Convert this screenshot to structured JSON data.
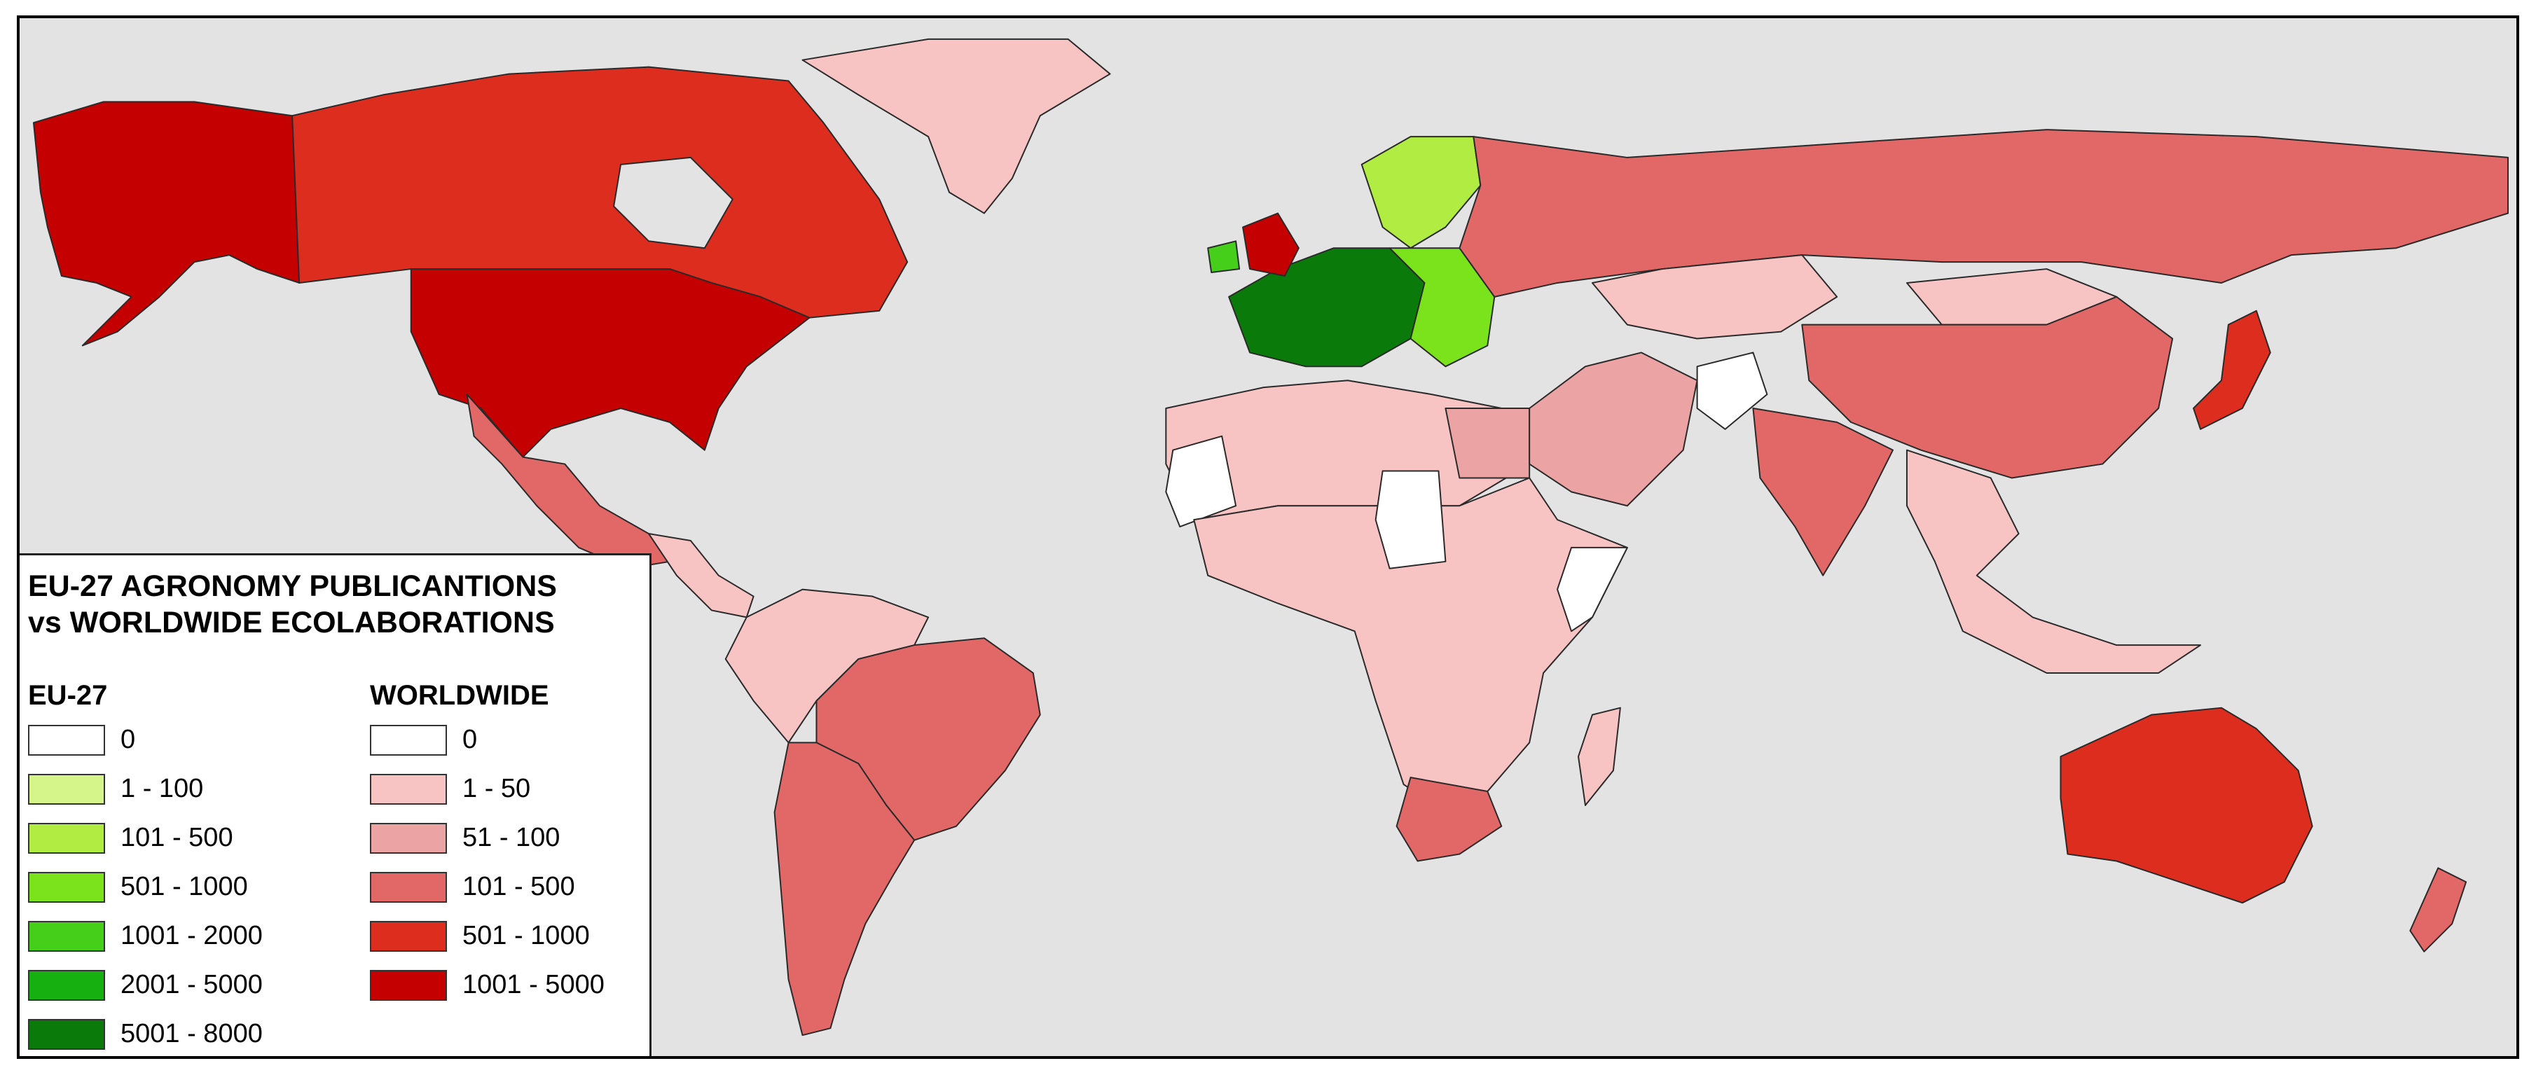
{
  "title_line1": "EU-27 AGRONOMY PUBLICANTIONS",
  "title_line2": "vs WORLDWIDE ECOLABORATIONS",
  "legend": {
    "eu27": {
      "heading": "EU-27",
      "classes": [
        {
          "label": "0",
          "color": "#ffffff"
        },
        {
          "label": "1 - 100",
          "color": "#d5f58a"
        },
        {
          "label": "101 - 500",
          "color": "#b0ec42"
        },
        {
          "label": "501 - 1000",
          "color": "#7be31c"
        },
        {
          "label": "1001 - 2000",
          "color": "#46cf1a"
        },
        {
          "label": "2001 - 5000",
          "color": "#16b010"
        },
        {
          "label": "5001 - 8000",
          "color": "#0a7a0a"
        }
      ]
    },
    "worldwide": {
      "heading": "WORLDWIDE",
      "classes": [
        {
          "label": "0",
          "color": "#ffffff"
        },
        {
          "label": "1 - 50",
          "color": "#f7c3c3"
        },
        {
          "label": "51 - 100",
          "color": "#eba3a3"
        },
        {
          "label": "101 - 500",
          "color": "#e26767"
        },
        {
          "label": "501 - 1000",
          "color": "#dc2d1e"
        },
        {
          "label": "1001 - 5000",
          "color": "#c40000"
        }
      ]
    }
  },
  "background_color": "#e3e3e3",
  "region_classes": {
    "canada": "#dc2d1e",
    "alaska": "#c40000",
    "usa": "#c40000",
    "greenland": "#f7c3c3",
    "mexico": "#e26767",
    "central_america": "#f7c3c3",
    "brazil": "#e26767",
    "south_america_other": "#f7c3c3",
    "argentina_chile": "#e26767",
    "north_africa": "#f7c3c3",
    "africa": "#f7c3c3",
    "egypt": "#eba3a3",
    "south_africa": "#e26767",
    "russia": "#e26767",
    "middle_east": "#eba3a3",
    "kazakhstan_mongolia": "#f7c3c3",
    "china": "#e26767",
    "india": "#e26767",
    "japan": "#dc2d1e",
    "southeast_asia": "#f7c3c3",
    "australia": "#dc2d1e",
    "new_zealand": "#e26767",
    "uk": "#c40000"
  }
}
